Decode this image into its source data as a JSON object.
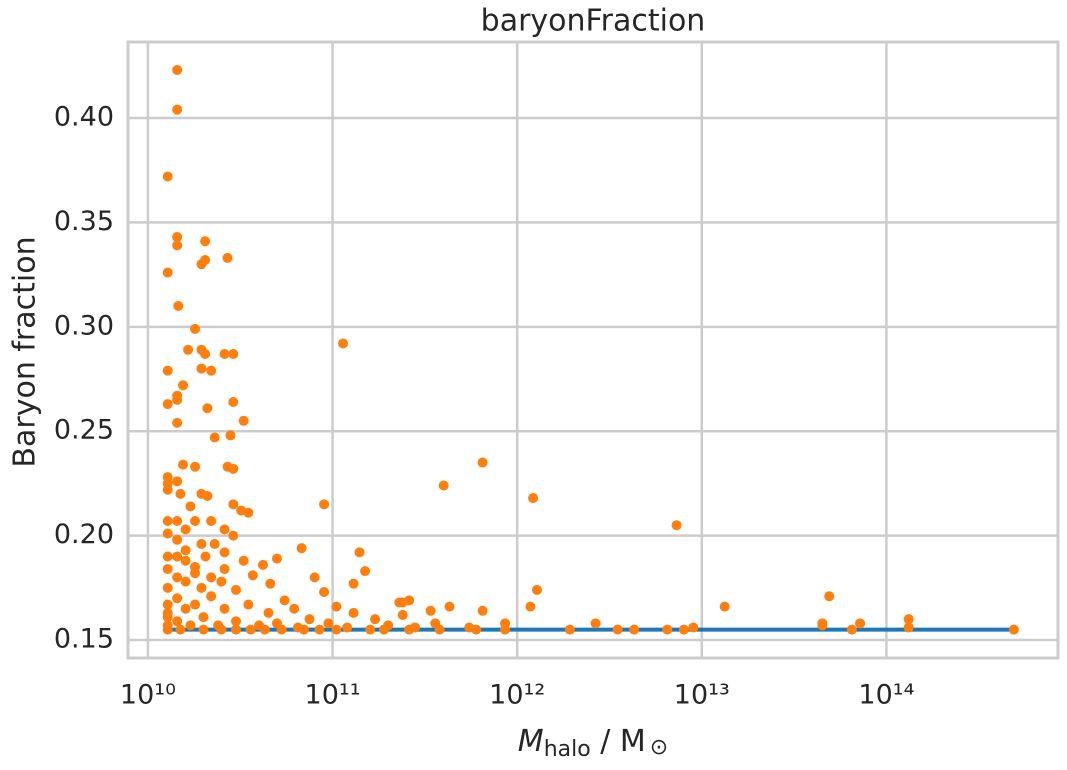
{
  "chart_data": {
    "type": "scatter",
    "title": "baryonFraction",
    "ylabel": "Baryon fraction",
    "xlabel": [
      "M",
      "halo",
      " / M",
      "⊙"
    ],
    "xscale": "log",
    "grid": true,
    "xlim": [
      7800000000.0,
      850000000000000.0
    ],
    "ylim": [
      0.1414,
      0.4364
    ],
    "xticks": [
      {
        "value": 10000000000.0,
        "label": "10¹⁰"
      },
      {
        "value": 100000000000.0,
        "label": "10¹¹"
      },
      {
        "value": 1000000000000.0,
        "label": "10¹²"
      },
      {
        "value": 10000000000000.0,
        "label": "10¹³"
      },
      {
        "value": 100000000000000.0,
        "label": "10¹⁴"
      }
    ],
    "yticks": [
      0.15,
      {
        "value": 0.2,
        "label": "0.20"
      },
      0.25,
      {
        "value": 0.3,
        "label": "0.30"
      },
      0.35,
      {
        "value": 0.4,
        "label": "0.40"
      }
    ],
    "line": {
      "color": "#1f77b4",
      "x": [
        13000000000.0,
        490000000000000.0
      ],
      "y": [
        0.155,
        0.155
      ]
    },
    "points": {
      "color": "#ff7f0e",
      "x": [
        14400000000.0,
        14400000000.0,
        12800000000.0,
        14400000000.0,
        14400000000.0,
        20400000000.0,
        20400000000.0,
        19500000000.0,
        27000000000.0,
        12800000000.0,
        14600000000.0,
        18000000000.0,
        114000000000.0,
        16500000000.0,
        19500000000.0,
        20400000000.0,
        26000000000.0,
        29000000000.0,
        19500000000.0,
        22000000000.0,
        12800000000.0,
        15500000000.0,
        14400000000.0,
        14400000000.0,
        12800000000.0,
        29000000000.0,
        21000000000.0,
        33000000000.0,
        14400000000.0,
        23000000000.0,
        28000000000.0,
        650000000000.0,
        15500000000.0,
        18000000000.0,
        27000000000.0,
        29000000000.0,
        12800000000.0,
        12800000000.0,
        14400000000.0,
        400000000000.0,
        12800000000.0,
        15000000000.0,
        19500000000.0,
        21000000000.0,
        1220000000000.0,
        29000000000.0,
        90000000000.0,
        17000000000.0,
        32000000000.0,
        35000000000.0,
        7300000000000.0,
        12800000000.0,
        14400000000.0,
        18000000000.0,
        22000000000.0,
        16000000000.0,
        26000000000.0,
        12800000000.0,
        29000000000.0,
        14400000000.0,
        19500000000.0,
        23000000000.0,
        68000000000.0,
        16000000000.0,
        26000000000.0,
        140000000000.0,
        12800000000.0,
        14400000000.0,
        20500000000.0,
        50000000000.0,
        16000000000.0,
        33000000000.0,
        42000000000.0,
        12800000000.0,
        18000000000.0,
        26000000000.0,
        150000000000.0,
        37000000000.0,
        14400000000.0,
        18000000000.0,
        22000000000.0,
        80000000000.0,
        16000000000.0,
        25000000000.0,
        46000000000.0,
        130000000000.0,
        1280000000000.0,
        12800000000.0,
        19500000000.0,
        30000000000.0,
        90000000000.0,
        49000000000000.0,
        260000000000.0,
        14400000000.0,
        22000000000.0,
        55000000000.0,
        230000000000.0,
        240000000000.0,
        12800000000.0,
        18000000000.0,
        35000000000.0,
        105000000000.0,
        430000000000.0,
        1180000000000.0,
        13300000000000.0,
        340000000000.0,
        650000000000.0,
        16000000000.0,
        26000000000.0,
        62000000000.0,
        12800000000.0,
        45000000000.0,
        130000000000.0,
        240000000000.0,
        132000000000000.0,
        12800000000.0,
        20000000000.0,
        75000000000.0,
        170000000000.0,
        360000000000.0,
        860000000000.0,
        2660000000000.0,
        72000000000000.0,
        45000000000000.0,
        14400000000.0,
        30000000000.0,
        50000000000.0,
        95000000000.0,
        200000000000.0,
        9000000000000.0,
        132000000000000.0,
        45000000000000.0,
        12800000000.0,
        17000000000.0,
        24000000000.0,
        40000000000.0,
        65000000000.0,
        120000000000.0,
        280000000000.0,
        550000000000.0,
        1930000000000.0,
        3500000000000.0,
        4300000000000.0,
        6500000000000.0,
        8000000000000.0,
        65000000000000.0,
        490000000000000.0,
        15000000000.0,
        20000000000.0,
        25000000000.0,
        30000000000.0,
        36000000000.0,
        43000000000.0,
        53000000000.0,
        70000000000.0,
        85000000000.0,
        105000000000.0,
        160000000000.0,
        190000000000.0,
        260000000000.0,
        380000000000.0,
        600000000000.0,
        860000000000.0,
        12800000000.0
      ],
      "y": [
        0.423,
        0.404,
        0.372,
        0.343,
        0.339,
        0.341,
        0.332,
        0.33,
        0.333,
        0.326,
        0.31,
        0.299,
        0.292,
        0.289,
        0.289,
        0.287,
        0.287,
        0.287,
        0.28,
        0.279,
        0.279,
        0.272,
        0.267,
        0.265,
        0.263,
        0.264,
        0.261,
        0.255,
        0.254,
        0.247,
        0.248,
        0.235,
        0.234,
        0.233,
        0.233,
        0.232,
        0.228,
        0.225,
        0.226,
        0.224,
        0.222,
        0.22,
        0.22,
        0.219,
        0.218,
        0.215,
        0.215,
        0.214,
        0.212,
        0.211,
        0.205,
        0.207,
        0.207,
        0.207,
        0.207,
        0.203,
        0.203,
        0.201,
        0.2,
        0.198,
        0.196,
        0.196,
        0.194,
        0.193,
        0.192,
        0.192,
        0.19,
        0.19,
        0.19,
        0.189,
        0.188,
        0.188,
        0.186,
        0.184,
        0.185,
        0.184,
        0.183,
        0.181,
        0.18,
        0.182,
        0.18,
        0.18,
        0.178,
        0.178,
        0.177,
        0.177,
        0.174,
        0.175,
        0.175,
        0.174,
        0.173,
        0.171,
        0.169,
        0.17,
        0.171,
        0.169,
        0.168,
        0.168,
        0.167,
        0.167,
        0.167,
        0.166,
        0.166,
        0.166,
        0.166,
        0.164,
        0.164,
        0.165,
        0.165,
        0.165,
        0.163,
        0.163,
        0.163,
        0.162,
        0.16,
        0.161,
        0.161,
        0.16,
        0.16,
        0.158,
        0.158,
        0.158,
        0.158,
        0.158,
        0.159,
        0.159,
        0.158,
        0.158,
        0.157,
        0.156,
        0.156,
        0.157,
        0.157,
        0.157,
        0.157,
        0.157,
        0.156,
        0.156,
        0.156,
        0.156,
        0.155,
        0.155,
        0.155,
        0.155,
        0.155,
        0.155,
        0.155,
        0.155,
        0.155,
        0.155,
        0.155,
        0.155,
        0.155,
        0.155,
        0.155,
        0.155,
        0.155,
        0.155,
        0.155,
        0.155,
        0.155,
        0.155,
        0.155,
        0.155
      ]
    }
  }
}
